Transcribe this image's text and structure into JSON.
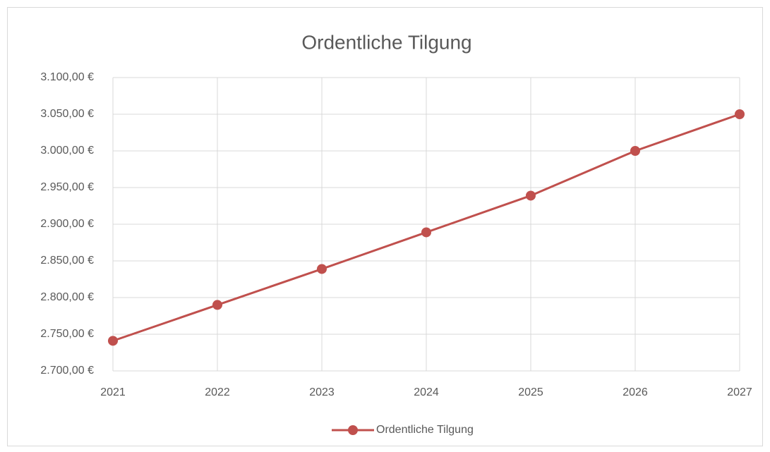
{
  "chart_data": {
    "type": "line",
    "title": "Ordentliche Tilgung",
    "categories": [
      "2021",
      "2022",
      "2023",
      "2024",
      "2025",
      "2026",
      "2027"
    ],
    "series": [
      {
        "name": "Ordentliche Tilgung",
        "color": "#c0504d",
        "values": [
          2741,
          2790,
          2839,
          2889,
          2939,
          3000,
          3050
        ]
      }
    ],
    "ylim": [
      2700,
      3100
    ],
    "yticks": [
      {
        "value": 2700,
        "label": "2.700,00 €"
      },
      {
        "value": 2750,
        "label": "2.750,00 €"
      },
      {
        "value": 2800,
        "label": "2.800,00 €"
      },
      {
        "value": 2850,
        "label": "2.850,00 €"
      },
      {
        "value": 2900,
        "label": "2.900,00 €"
      },
      {
        "value": 2950,
        "label": "2.950,00 €"
      },
      {
        "value": 3000,
        "label": "3.000,00 €"
      },
      {
        "value": 3050,
        "label": "3.050,00 €"
      },
      {
        "value": 3100,
        "label": "3.100,00 €"
      }
    ],
    "grid": true,
    "legend": "bottom"
  }
}
